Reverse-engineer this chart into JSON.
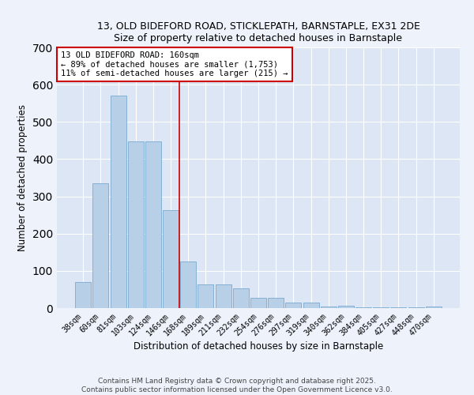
{
  "title1": "13, OLD BIDEFORD ROAD, STICKLEPATH, BARNSTAPLE, EX31 2DE",
  "title2": "Size of property relative to detached houses in Barnstaple",
  "xlabel": "Distribution of detached houses by size in Barnstaple",
  "ylabel": "Number of detached properties",
  "background_color": "#dce6f5",
  "fig_background_color": "#edf2fb",
  "bar_color": "#b8cfe8",
  "bar_edge_color": "#7aaad0",
  "categories": [
    "38sqm",
    "60sqm",
    "81sqm",
    "103sqm",
    "124sqm",
    "146sqm",
    "168sqm",
    "189sqm",
    "211sqm",
    "232sqm",
    "254sqm",
    "276sqm",
    "297sqm",
    "319sqm",
    "340sqm",
    "362sqm",
    "384sqm",
    "405sqm",
    "427sqm",
    "448sqm",
    "470sqm"
  ],
  "values": [
    70,
    335,
    570,
    447,
    447,
    262,
    125,
    63,
    63,
    52,
    28,
    28,
    15,
    15,
    5,
    7,
    2,
    2,
    2,
    2,
    5
  ],
  "ylim": [
    0,
    700
  ],
  "yticks": [
    0,
    100,
    200,
    300,
    400,
    500,
    600,
    700
  ],
  "red_line_x": 5.5,
  "annotation_title": "13 OLD BIDEFORD ROAD: 160sqm",
  "annotation_line1": "← 89% of detached houses are smaller (1,753)",
  "annotation_line2": "11% of semi-detached houses are larger (215) →",
  "annotation_box_color": "#ffffff",
  "annotation_box_edge": "#cc0000",
  "red_line_color": "#cc0000",
  "footer1": "Contains HM Land Registry data © Crown copyright and database right 2025.",
  "footer2": "Contains public sector information licensed under the Open Government Licence v3.0."
}
